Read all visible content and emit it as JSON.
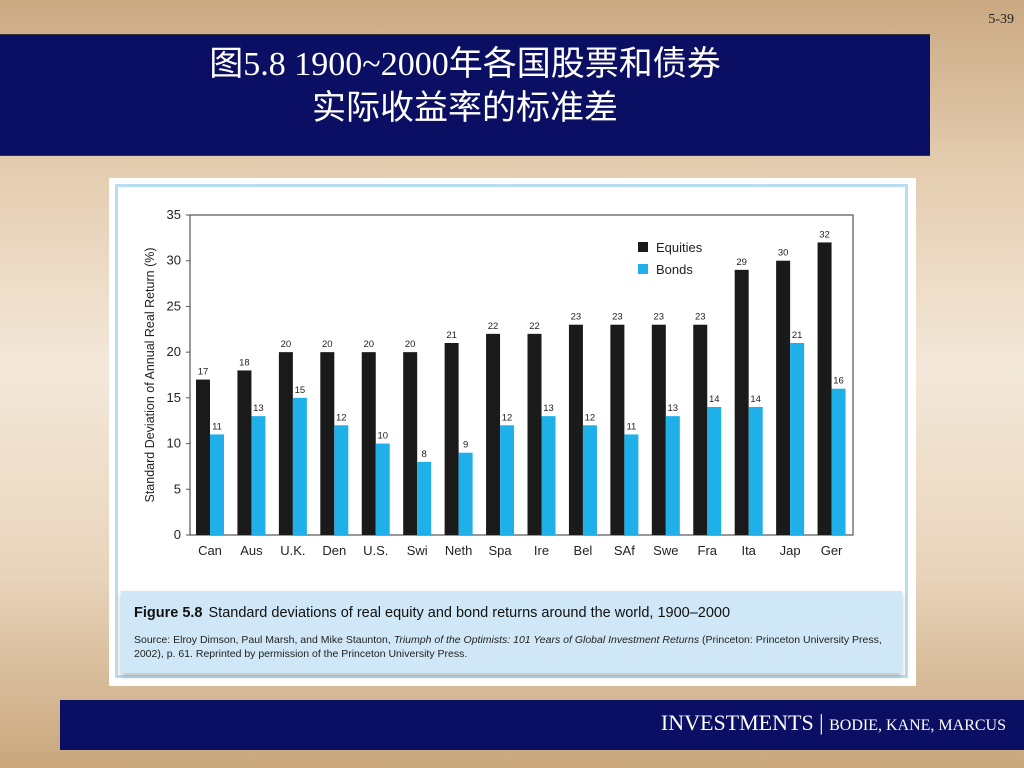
{
  "slide": {
    "number": "5-39",
    "title_line1": "图5.8 1900~2000年各国股票和债券",
    "title_line2": "实际收益率的标准差",
    "footer_main": "INVESTMENTS | ",
    "footer_authors": "BODIE, KANE, MARCUS"
  },
  "caption": {
    "figure_label": "Figure 5.8",
    "figure_text": "Standard deviations of real equity and bond returns around the world, 1900–2000",
    "source_prefix": "Source: Elroy Dimson, Paul Marsh, and Mike Staunton, ",
    "source_title": "Triumph of the Optimists: 101 Years of Global Investment Returns",
    "source_suffix": " (Princeton: Princeton University Press, 2002), p. 61. Reprinted by permission of the Princeton University Press."
  },
  "colors": {
    "equities": "#1a1a1a",
    "bonds": "#1fb0ea",
    "title_bar": "#0b0f63"
  },
  "chart_data": {
    "type": "bar",
    "title": "",
    "xlabel": "",
    "ylabel": "Standard Deviation of Annual Real Return (%)",
    "ylim": [
      0,
      35
    ],
    "yticks": [
      0,
      5,
      10,
      15,
      20,
      25,
      30,
      35
    ],
    "legend_position": "top-right",
    "categories": [
      "Can",
      "Aus",
      "U.K.",
      "Den",
      "U.S.",
      "Swi",
      "Neth",
      "Spa",
      "Ire",
      "Bel",
      "SAf",
      "Swe",
      "Fra",
      "Ita",
      "Jap",
      "Ger"
    ],
    "series": [
      {
        "name": "Equities",
        "values": [
          17,
          18,
          20,
          20,
          20,
          20,
          21,
          22,
          22,
          23,
          23,
          23,
          23,
          29,
          30,
          32
        ]
      },
      {
        "name": "Bonds",
        "values": [
          11,
          13,
          15,
          12,
          10,
          8,
          9,
          12,
          13,
          12,
          11,
          13,
          14,
          14,
          21,
          16
        ]
      }
    ]
  }
}
